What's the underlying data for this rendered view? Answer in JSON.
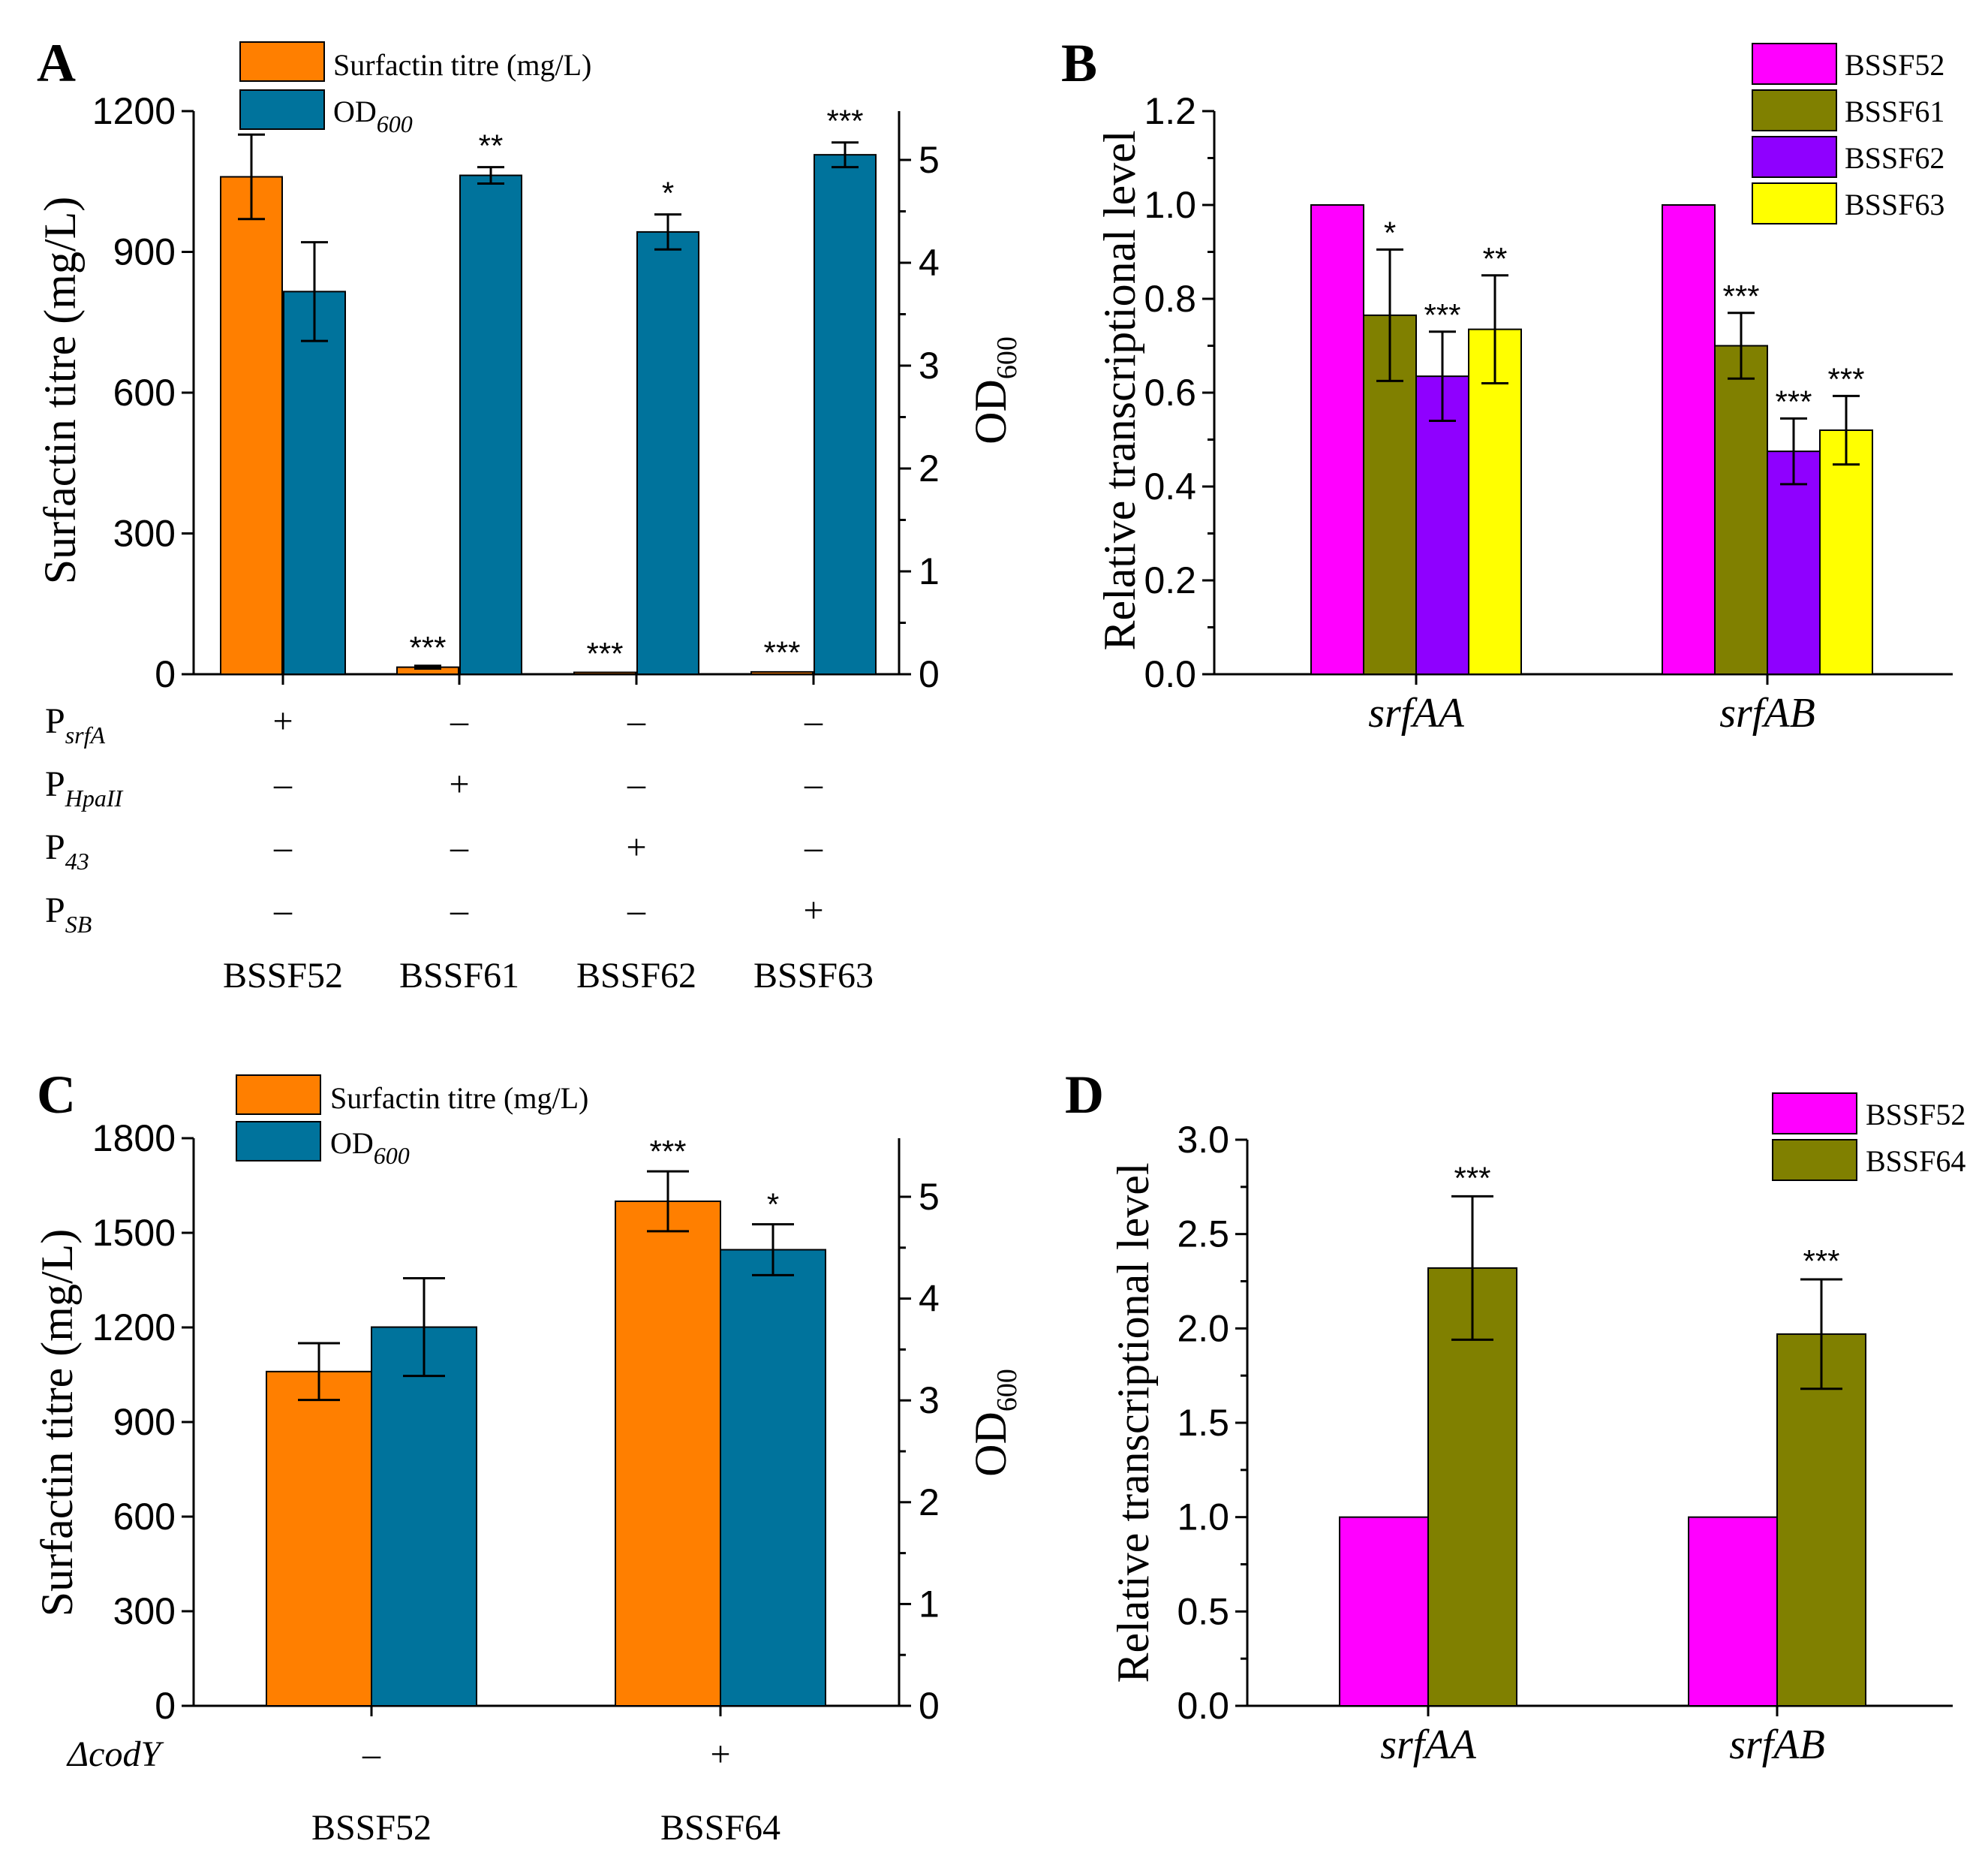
{
  "colors": {
    "orange": "#ff7f00",
    "teal": "#00739c",
    "magenta": "#ff00ff",
    "olive": "#808000",
    "purple": "#8f00ff",
    "yellow": "#ffff00"
  },
  "chart_data": [
    {
      "panel": "A",
      "type": "bar",
      "title": "",
      "categories": [
        "BSSF52",
        "BSSF61",
        "BSSF62",
        "BSSF63"
      ],
      "ylabel": "Surfactin titre (mg/L)",
      "y2label": "OD",
      "y2label_sub": "600",
      "ylim": [
        0,
        1200
      ],
      "y2lim": [
        0,
        5.5
      ],
      "yticks": [
        "0",
        "300",
        "600",
        "900",
        "1200"
      ],
      "y2ticks": [
        "0",
        "1",
        "2",
        "3",
        "4",
        "5"
      ],
      "series": [
        {
          "name": "Surfactin titre (mg/L)",
          "axis": "left",
          "color": "orange",
          "values": [
            1060,
            15,
            4,
            5
          ],
          "errors": [
            90,
            3,
            1,
            2
          ],
          "sig": [
            "",
            "***",
            "***",
            "***"
          ]
        },
        {
          "name": "OD",
          "name_sub": "600",
          "axis": "right",
          "color": "teal",
          "values": [
            3.72,
            4.85,
            4.3,
            5.05
          ],
          "errors": [
            0.48,
            0.08,
            0.17,
            0.12
          ],
          "sig": [
            "",
            "**",
            "*",
            "***"
          ]
        }
      ],
      "promoter_table": {
        "rows": [
          {
            "label": "P",
            "sub": "srfA",
            "values": [
              "+",
              "–",
              "–",
              "–"
            ]
          },
          {
            "label": "P",
            "sub": "HpaII",
            "values": [
              "–",
              "+",
              "–",
              "–"
            ]
          },
          {
            "label": "P",
            "sub": "43",
            "values": [
              "–",
              "–",
              "+",
              "–"
            ]
          },
          {
            "label": "P",
            "sub": "SB",
            "values": [
              "–",
              "–",
              "–",
              "+"
            ]
          }
        ]
      }
    },
    {
      "panel": "B",
      "type": "bar",
      "title": "",
      "categories": [
        "srfAA",
        "srfAB"
      ],
      "ylabel": "Relative transcriptional level",
      "ylim": [
        0,
        1.2
      ],
      "yticks": [
        "0.0",
        "0.2",
        "0.4",
        "0.6",
        "0.8",
        "1.0",
        "1.2"
      ],
      "series": [
        {
          "name": "BSSF52",
          "color": "magenta",
          "values": [
            1.0,
            1.0
          ],
          "errors": [
            0,
            0
          ],
          "sig": [
            "",
            ""
          ]
        },
        {
          "name": "BSSF61",
          "color": "olive",
          "values": [
            0.765,
            0.7
          ],
          "errors": [
            0.14,
            0.07
          ],
          "sig": [
            "*",
            "***"
          ]
        },
        {
          "name": "BSSF62",
          "color": "purple",
          "values": [
            0.635,
            0.475
          ],
          "errors": [
            0.095,
            0.07
          ],
          "sig": [
            "***",
            "***"
          ]
        },
        {
          "name": "BSSF63",
          "color": "yellow",
          "values": [
            0.735,
            0.52
          ],
          "errors": [
            0.115,
            0.073
          ],
          "sig": [
            "**",
            "***"
          ]
        }
      ]
    },
    {
      "panel": "C",
      "type": "bar",
      "title": "",
      "categories": [
        "BSSF52",
        "BSSF64"
      ],
      "ylabel": "Surfactin titre (mg/L)",
      "y2label": "OD",
      "y2label_sub": "600",
      "ylim": [
        0,
        1800
      ],
      "y2lim": [
        0,
        5.5
      ],
      "yticks": [
        "0",
        "300",
        "600",
        "900",
        "1200",
        "1500",
        "1800"
      ],
      "y2ticks": [
        "0",
        "1",
        "2",
        "3",
        "4",
        "5"
      ],
      "series": [
        {
          "name": "Surfactin titre (mg/L)",
          "axis": "left",
          "color": "orange",
          "values": [
            1060,
            1600
          ],
          "errors": [
            90,
            95
          ],
          "sig": [
            "",
            "***"
          ]
        },
        {
          "name": "OD",
          "name_sub": "600",
          "axis": "right",
          "color": "teal",
          "values": [
            3.72,
            4.48
          ],
          "errors": [
            0.48,
            0.25
          ],
          "sig": [
            "",
            "*"
          ]
        }
      ],
      "codY_row": {
        "label": "ΔcodY",
        "values": [
          "–",
          "+"
        ]
      }
    },
    {
      "panel": "D",
      "type": "bar",
      "title": "",
      "categories": [
        "srfAA",
        "srfAB"
      ],
      "ylabel": "Relative transcriptional level",
      "ylim": [
        0,
        3.0
      ],
      "yticks": [
        "0.0",
        "0.5",
        "1.0",
        "1.5",
        "2.0",
        "2.5",
        "3.0"
      ],
      "series": [
        {
          "name": "BSSF52",
          "color": "magenta",
          "values": [
            1.0,
            1.0
          ],
          "errors": [
            0,
            0
          ],
          "sig": [
            "",
            ""
          ]
        },
        {
          "name": "BSSF64",
          "color": "olive",
          "values": [
            2.32,
            1.97
          ],
          "errors": [
            0.38,
            0.29
          ],
          "sig": [
            "***",
            "***"
          ]
        }
      ]
    }
  ]
}
